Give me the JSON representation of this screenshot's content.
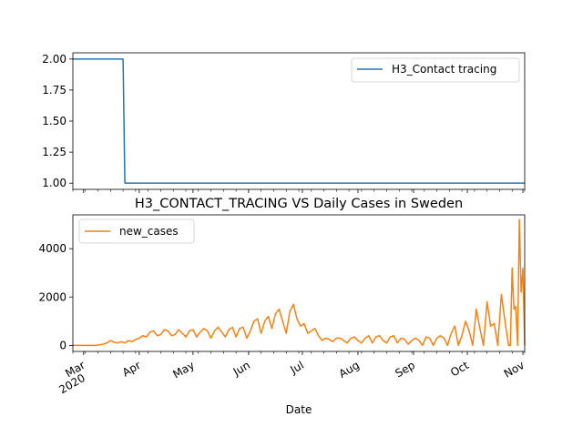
{
  "chart_data": [
    {
      "type": "line",
      "title": "",
      "xlabel": "",
      "ylabel": "",
      "x_range": [
        "2020-02-24",
        "2020-11-02"
      ],
      "ylim": [
        0.95,
        2.05
      ],
      "yticks": [
        "1.00",
        "1.25",
        "1.50",
        "1.75",
        "2.00"
      ],
      "grid": false,
      "legend_position": "top-right",
      "series": [
        {
          "name": "H3_Contact tracing",
          "color": "#1f77b4",
          "points": [
            [
              "2020-02-24",
              2
            ],
            [
              "2020-03-23",
              2
            ],
            [
              "2020-03-24",
              1
            ],
            [
              "2020-11-02",
              1
            ]
          ]
        }
      ]
    },
    {
      "type": "line",
      "title": "H3_CONTACT_TRACING VS Daily Cases in Sweden",
      "xlabel": "Date",
      "ylabel": "",
      "x_range": [
        "2020-02-24",
        "2020-11-02"
      ],
      "ylim": [
        -250,
        5400
      ],
      "yticks": [
        "0",
        "2000",
        "4000"
      ],
      "xtick_labels": [
        {
          "date": "2020-03-01",
          "label": "Mar",
          "sub": "2020"
        },
        {
          "date": "2020-04-01",
          "label": "Apr",
          "sub": ""
        },
        {
          "date": "2020-05-01",
          "label": "May",
          "sub": ""
        },
        {
          "date": "2020-06-01",
          "label": "Jun",
          "sub": ""
        },
        {
          "date": "2020-07-01",
          "label": "Jul",
          "sub": ""
        },
        {
          "date": "2020-08-01",
          "label": "Aug",
          "sub": ""
        },
        {
          "date": "2020-09-01",
          "label": "Sep",
          "sub": ""
        },
        {
          "date": "2020-10-01",
          "label": "Oct",
          "sub": ""
        },
        {
          "date": "2020-11-01",
          "label": "Nov",
          "sub": ""
        }
      ],
      "grid": false,
      "legend_position": "top-left",
      "series": [
        {
          "name": "new_cases",
          "color": "#ff7f0e",
          "points": [
            [
              "2020-02-24",
              0
            ],
            [
              "2020-03-01",
              0
            ],
            [
              "2020-03-08",
              0
            ],
            [
              "2020-03-12",
              50
            ],
            [
              "2020-03-14",
              100
            ],
            [
              "2020-03-16",
              200
            ],
            [
              "2020-03-18",
              130
            ],
            [
              "2020-03-20",
              100
            ],
            [
              "2020-03-22",
              150
            ],
            [
              "2020-03-24",
              100
            ],
            [
              "2020-03-26",
              200
            ],
            [
              "2020-03-28",
              150
            ],
            [
              "2020-03-30",
              250
            ],
            [
              "2020-04-01",
              300
            ],
            [
              "2020-04-03",
              400
            ],
            [
              "2020-04-05",
              350
            ],
            [
              "2020-04-07",
              550
            ],
            [
              "2020-04-09",
              600
            ],
            [
              "2020-04-11",
              400
            ],
            [
              "2020-04-13",
              450
            ],
            [
              "2020-04-15",
              650
            ],
            [
              "2020-04-17",
              600
            ],
            [
              "2020-04-19",
              400
            ],
            [
              "2020-04-21",
              450
            ],
            [
              "2020-04-23",
              650
            ],
            [
              "2020-04-25",
              500
            ],
            [
              "2020-04-27",
              350
            ],
            [
              "2020-04-29",
              600
            ],
            [
              "2020-05-01",
              650
            ],
            [
              "2020-05-03",
              350
            ],
            [
              "2020-05-05",
              550
            ],
            [
              "2020-05-07",
              700
            ],
            [
              "2020-05-09",
              600
            ],
            [
              "2020-05-11",
              300
            ],
            [
              "2020-05-13",
              600
            ],
            [
              "2020-05-15",
              750
            ],
            [
              "2020-05-17",
              550
            ],
            [
              "2020-05-19",
              350
            ],
            [
              "2020-05-21",
              650
            ],
            [
              "2020-05-23",
              750
            ],
            [
              "2020-05-25",
              350
            ],
            [
              "2020-05-27",
              700
            ],
            [
              "2020-05-29",
              750
            ],
            [
              "2020-05-31",
              300
            ],
            [
              "2020-06-02",
              600
            ],
            [
              "2020-06-04",
              1000
            ],
            [
              "2020-06-06",
              1100
            ],
            [
              "2020-06-08",
              500
            ],
            [
              "2020-06-10",
              1000
            ],
            [
              "2020-06-12",
              1200
            ],
            [
              "2020-06-14",
              700
            ],
            [
              "2020-06-16",
              1300
            ],
            [
              "2020-06-18",
              1500
            ],
            [
              "2020-06-20",
              1000
            ],
            [
              "2020-06-22",
              500
            ],
            [
              "2020-06-24",
              1400
            ],
            [
              "2020-06-26",
              1700
            ],
            [
              "2020-06-28",
              1100
            ],
            [
              "2020-06-30",
              800
            ],
            [
              "2020-07-02",
              900
            ],
            [
              "2020-07-04",
              500
            ],
            [
              "2020-07-06",
              600
            ],
            [
              "2020-07-08",
              700
            ],
            [
              "2020-07-10",
              400
            ],
            [
              "2020-07-12",
              200
            ],
            [
              "2020-07-14",
              300
            ],
            [
              "2020-07-16",
              250
            ],
            [
              "2020-07-18",
              150
            ],
            [
              "2020-07-20",
              300
            ],
            [
              "2020-07-22",
              300
            ],
            [
              "2020-07-24",
              200
            ],
            [
              "2020-07-26",
              100
            ],
            [
              "2020-07-28",
              300
            ],
            [
              "2020-07-30",
              350
            ],
            [
              "2020-08-01",
              200
            ],
            [
              "2020-08-03",
              100
            ],
            [
              "2020-08-05",
              300
            ],
            [
              "2020-08-07",
              400
            ],
            [
              "2020-08-09",
              100
            ],
            [
              "2020-08-11",
              350
            ],
            [
              "2020-08-13",
              400
            ],
            [
              "2020-08-15",
              200
            ],
            [
              "2020-08-17",
              100
            ],
            [
              "2020-08-19",
              350
            ],
            [
              "2020-08-21",
              400
            ],
            [
              "2020-08-23",
              100
            ],
            [
              "2020-08-25",
              300
            ],
            [
              "2020-08-27",
              250
            ],
            [
              "2020-08-29",
              50
            ],
            [
              "2020-08-31",
              200
            ],
            [
              "2020-09-02",
              300
            ],
            [
              "2020-09-04",
              200
            ],
            [
              "2020-09-06",
              0
            ],
            [
              "2020-09-08",
              350
            ],
            [
              "2020-09-10",
              300
            ],
            [
              "2020-09-12",
              0
            ],
            [
              "2020-09-14",
              300
            ],
            [
              "2020-09-16",
              400
            ],
            [
              "2020-09-18",
              300
            ],
            [
              "2020-09-20",
              0
            ],
            [
              "2020-09-22",
              500
            ],
            [
              "2020-09-24",
              800
            ],
            [
              "2020-09-26",
              0
            ],
            [
              "2020-09-28",
              400
            ],
            [
              "2020-09-30",
              1000
            ],
            [
              "2020-10-02",
              600
            ],
            [
              "2020-10-04",
              0
            ],
            [
              "2020-10-06",
              1500
            ],
            [
              "2020-10-08",
              700
            ],
            [
              "2020-10-10",
              0
            ],
            [
              "2020-10-12",
              1800
            ],
            [
              "2020-10-14",
              800
            ],
            [
              "2020-10-16",
              900
            ],
            [
              "2020-10-18",
              0
            ],
            [
              "2020-10-20",
              2100
            ],
            [
              "2020-10-22",
              1000
            ],
            [
              "2020-10-24",
              0
            ],
            [
              "2020-10-25",
              0
            ],
            [
              "2020-10-26",
              3200
            ],
            [
              "2020-10-27",
              1500
            ],
            [
              "2020-10-28",
              1600
            ],
            [
              "2020-10-29",
              0
            ],
            [
              "2020-10-30",
              5200
            ],
            [
              "2020-10-31",
              2200
            ],
            [
              "2020-11-01",
              3200
            ],
            [
              "2020-11-02",
              0
            ]
          ]
        }
      ]
    }
  ]
}
